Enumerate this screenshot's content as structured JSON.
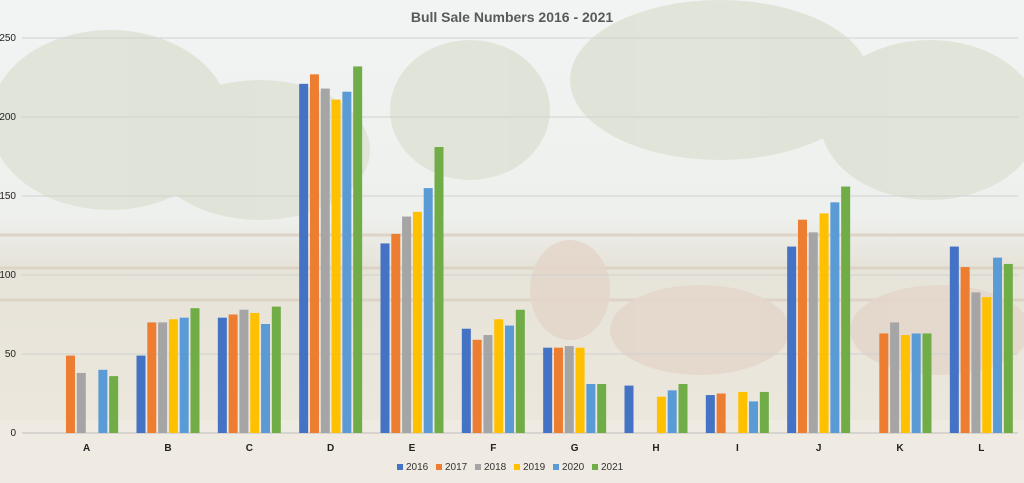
{
  "chart_data": {
    "type": "bar",
    "title": "Bull Sale Numbers 2016 - 2021",
    "xlabel": "",
    "ylabel": "",
    "ylim": [
      0,
      250
    ],
    "yticks": [
      0,
      50,
      100,
      150,
      200,
      250
    ],
    "grid": true,
    "legend_position": "bottom",
    "categories": [
      "A",
      "B",
      "C",
      "D",
      "E",
      "F",
      "G",
      "H",
      "I",
      "J",
      "K",
      "L"
    ],
    "series": [
      {
        "name": "2016",
        "color": "#4472C4",
        "values": [
          null,
          49,
          73,
          221,
          120,
          66,
          54,
          30,
          24,
          118,
          null,
          118
        ]
      },
      {
        "name": "2017",
        "color": "#ED7D31",
        "values": [
          49,
          70,
          75,
          227,
          126,
          59,
          54,
          null,
          25,
          135,
          63,
          105
        ]
      },
      {
        "name": "2018",
        "color": "#A5A5A5",
        "values": [
          38,
          70,
          78,
          218,
          137,
          62,
          55,
          null,
          null,
          127,
          70,
          89
        ]
      },
      {
        "name": "2019",
        "color": "#FFC000",
        "values": [
          null,
          72,
          76,
          211,
          140,
          72,
          54,
          23,
          26,
          139,
          62,
          86
        ]
      },
      {
        "name": "2020",
        "color": "#5B9BD5",
        "values": [
          40,
          73,
          69,
          216,
          155,
          68,
          31,
          27,
          20,
          146,
          63,
          111
        ]
      },
      {
        "name": "2021",
        "color": "#70AD47",
        "values": [
          36,
          79,
          80,
          232,
          181,
          78,
          31,
          31,
          26,
          156,
          63,
          107
        ]
      }
    ]
  }
}
